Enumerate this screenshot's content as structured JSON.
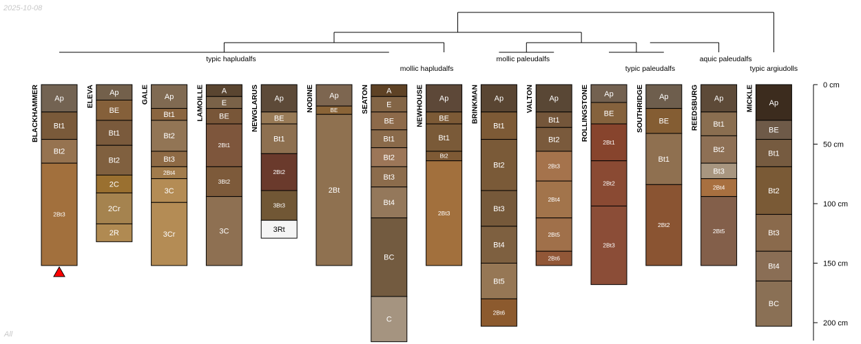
{
  "date_label": "2025-10-08",
  "subset_label": "All",
  "colors": {
    "line": "#000000",
    "missing_marker": "#ff0000",
    "light_text": "#ffffff",
    "dark_text": "#000000"
  },
  "depth_axis": {
    "unit": "cm",
    "ticks": [
      {
        "value": 0,
        "label": "0 cm"
      },
      {
        "value": 50,
        "label": "50 cm"
      },
      {
        "value": 100,
        "label": "100 cm"
      },
      {
        "value": 150,
        "label": "150 cm"
      },
      {
        "value": 200,
        "label": "200 cm"
      }
    ],
    "range": [
      0,
      215
    ]
  },
  "groups": [
    {
      "label": "typic hapludalfs",
      "profiles": [
        "BLACKHAMMER",
        "ELEVA",
        "GALE",
        "LAMOILLE",
        "NEWGLARUS",
        "NODINE",
        "SEATON"
      ]
    },
    {
      "label": "mollic hapludalfs",
      "profiles": [
        "NEWHOUSE"
      ]
    },
    {
      "label": "mollic paleudalfs",
      "profiles": [
        "BRINKMAN",
        "VALTON"
      ]
    },
    {
      "label": "typic paleudalfs",
      "profiles": [
        "ROLLINGSTONE",
        "SOUTHRIDGE"
      ]
    },
    {
      "label": "aquic paleudalfs",
      "profiles": [
        "REEDSBURG"
      ]
    },
    {
      "label": "typic argiudolls",
      "profiles": [
        "MICKLE"
      ]
    }
  ],
  "profiles": [
    {
      "name": "BLACKHAMMER",
      "truncated": true,
      "horizons": [
        {
          "name": "Ap",
          "top": 0,
          "bottom": 23,
          "color": "#736352"
        },
        {
          "name": "Bt1",
          "top": 23,
          "bottom": 46,
          "color": "#7a5a3a"
        },
        {
          "name": "Bt2",
          "top": 46,
          "bottom": 66,
          "color": "#967350"
        },
        {
          "name": "2Bt3",
          "top": 66,
          "bottom": 152,
          "color": "#a2703d"
        }
      ]
    },
    {
      "name": "ELEVA",
      "horizons": [
        {
          "name": "Ap",
          "top": 0,
          "bottom": 13,
          "color": "#73604b"
        },
        {
          "name": "BE",
          "top": 13,
          "bottom": 30,
          "color": "#85603a"
        },
        {
          "name": "Bt1",
          "top": 30,
          "bottom": 51,
          "color": "#7a5a3c"
        },
        {
          "name": "Bt2",
          "top": 51,
          "bottom": 76,
          "color": "#80603f"
        },
        {
          "name": "2C",
          "top": 76,
          "bottom": 91,
          "color": "#9a7030"
        },
        {
          "name": "2Cr",
          "top": 91,
          "bottom": 117,
          "color": "#a5834f"
        },
        {
          "name": "2R",
          "top": 117,
          "bottom": 132,
          "color": "#b08a52"
        }
      ]
    },
    {
      "name": "GALE",
      "horizons": [
        {
          "name": "Ap",
          "top": 0,
          "bottom": 20,
          "color": "#806a52"
        },
        {
          "name": "Bt1",
          "top": 20,
          "bottom": 30,
          "color": "#8a6540"
        },
        {
          "name": "Bt2",
          "top": 30,
          "bottom": 56,
          "color": "#927555"
        },
        {
          "name": "Bt3",
          "top": 56,
          "bottom": 69,
          "color": "#8e6a45"
        },
        {
          "name": "2Bt4",
          "top": 69,
          "bottom": 79,
          "color": "#a27c4c"
        },
        {
          "name": "3C",
          "top": 79,
          "bottom": 99,
          "color": "#b48c55"
        },
        {
          "name": "3Cr",
          "top": 99,
          "bottom": 152,
          "color": "#b48c55"
        }
      ]
    },
    {
      "name": "LAMOILLE",
      "horizons": [
        {
          "name": "A",
          "top": 0,
          "bottom": 10,
          "color": "#5a4530"
        },
        {
          "name": "E",
          "top": 10,
          "bottom": 20,
          "color": "#7a6248"
        },
        {
          "name": "BE",
          "top": 20,
          "bottom": 33,
          "color": "#785638"
        },
        {
          "name": "2Bt1",
          "top": 33,
          "bottom": 69,
          "color": "#7e563c"
        },
        {
          "name": "3Bt2",
          "top": 69,
          "bottom": 94,
          "color": "#7d5a3a"
        },
        {
          "name": "3C",
          "top": 94,
          "bottom": 152,
          "color": "#8e7052"
        }
      ]
    },
    {
      "name": "NEWGLARUS",
      "horizons": [
        {
          "name": "Ap",
          "top": 0,
          "bottom": 23,
          "color": "#5d4a38"
        },
        {
          "name": "BE",
          "top": 23,
          "bottom": 33,
          "color": "#987a56"
        },
        {
          "name": "Bt1",
          "top": 33,
          "bottom": 58,
          "color": "#8e7050"
        },
        {
          "name": "2Bt2",
          "top": 58,
          "bottom": 89,
          "color": "#6a3a2c"
        },
        {
          "name": "3Bt3",
          "top": 89,
          "bottom": 114,
          "color": "#715735"
        },
        {
          "name": "3Rt",
          "top": 114,
          "bottom": 129,
          "color": "#f5f5f5"
        }
      ]
    },
    {
      "name": "NODINE",
      "horizons": [
        {
          "name": "Ap",
          "top": 0,
          "bottom": 18,
          "color": "#7d6650"
        },
        {
          "name": "BE",
          "top": 18,
          "bottom": 25,
          "color": "#8a6437"
        },
        {
          "name": "2Bt",
          "top": 25,
          "bottom": 152,
          "color": "#8f7150"
        }
      ]
    },
    {
      "name": "SEATON",
      "horizons": [
        {
          "name": "A",
          "top": 0,
          "bottom": 10,
          "color": "#5e4225"
        },
        {
          "name": "E",
          "top": 10,
          "bottom": 23,
          "color": "#836546"
        },
        {
          "name": "BE",
          "top": 23,
          "bottom": 38,
          "color": "#8d6a4a"
        },
        {
          "name": "Bt1",
          "top": 38,
          "bottom": 53,
          "color": "#8a6a4a"
        },
        {
          "name": "Bt2",
          "top": 53,
          "bottom": 69,
          "color": "#9c7658"
        },
        {
          "name": "Bt3",
          "top": 69,
          "bottom": 86,
          "color": "#8c6c4c"
        },
        {
          "name": "Bt4",
          "top": 86,
          "bottom": 112,
          "color": "#94785b"
        },
        {
          "name": "BC",
          "top": 112,
          "bottom": 178,
          "color": "#735b40"
        },
        {
          "name": "C",
          "top": 178,
          "bottom": 216,
          "color": "#a59480"
        }
      ]
    },
    {
      "name": "NEWHOUSE",
      "horizons": [
        {
          "name": "Ap",
          "top": 0,
          "bottom": 23,
          "color": "#5d4838"
        },
        {
          "name": "BE",
          "top": 23,
          "bottom": 33,
          "color": "#7c5a36"
        },
        {
          "name": "Bt1",
          "top": 33,
          "bottom": 56,
          "color": "#7a5a38"
        },
        {
          "name": "Bt2",
          "top": 56,
          "bottom": 64,
          "color": "#7e5a35"
        },
        {
          "name": "2Bt3",
          "top": 64,
          "bottom": 152,
          "color": "#a2703d"
        }
      ]
    },
    {
      "name": "BRINKMAN",
      "horizons": [
        {
          "name": "Ap",
          "top": 0,
          "bottom": 23,
          "color": "#594532"
        },
        {
          "name": "Bt1",
          "top": 23,
          "bottom": 46,
          "color": "#7d5a36"
        },
        {
          "name": "Bt2",
          "top": 46,
          "bottom": 89,
          "color": "#7a5a38"
        },
        {
          "name": "Bt3",
          "top": 89,
          "bottom": 119,
          "color": "#76593a"
        },
        {
          "name": "Bt4",
          "top": 119,
          "bottom": 150,
          "color": "#7e6040"
        },
        {
          "name": "Bt5",
          "top": 150,
          "bottom": 180,
          "color": "#967755"
        },
        {
          "name": "2Bt6",
          "top": 180,
          "bottom": 203,
          "color": "#8c5a2e"
        }
      ]
    },
    {
      "name": "VALTON",
      "horizons": [
        {
          "name": "Ap",
          "top": 0,
          "bottom": 23,
          "color": "#594735"
        },
        {
          "name": "Bt1",
          "top": 23,
          "bottom": 36,
          "color": "#74563a"
        },
        {
          "name": "Bt2",
          "top": 36,
          "bottom": 56,
          "color": "#7a5a3c"
        },
        {
          "name": "2Bt3",
          "top": 56,
          "bottom": 81,
          "color": "#a5734c"
        },
        {
          "name": "2Bt4",
          "top": 81,
          "bottom": 112,
          "color": "#a2744b"
        },
        {
          "name": "2Bt5",
          "top": 112,
          "bottom": 140,
          "color": "#a0704a"
        },
        {
          "name": "2Bt6",
          "top": 140,
          "bottom": 152,
          "color": "#915737"
        }
      ]
    },
    {
      "name": "ROLLINGSTONE",
      "horizons": [
        {
          "name": "Ap",
          "top": 0,
          "bottom": 15,
          "color": "#736150"
        },
        {
          "name": "BE",
          "top": 15,
          "bottom": 33,
          "color": "#85623d"
        },
        {
          "name": "2Bt1",
          "top": 33,
          "bottom": 64,
          "color": "#87442d"
        },
        {
          "name": "2Bt2",
          "top": 64,
          "bottom": 102,
          "color": "#8a4a33"
        },
        {
          "name": "2Bt3",
          "top": 102,
          "bottom": 168,
          "color": "#8b4d37"
        }
      ]
    },
    {
      "name": "SOUTHRIDGE",
      "horizons": [
        {
          "name": "Ap",
          "top": 0,
          "bottom": 20,
          "color": "#6e5e4d"
        },
        {
          "name": "BE",
          "top": 20,
          "bottom": 41,
          "color": "#845d33"
        },
        {
          "name": "Bt1",
          "top": 41,
          "bottom": 84,
          "color": "#8f7050"
        },
        {
          "name": "2Bt2",
          "top": 84,
          "bottom": 152,
          "color": "#8a5432"
        }
      ]
    },
    {
      "name": "REEDSBURG",
      "horizons": [
        {
          "name": "Ap",
          "top": 0,
          "bottom": 23,
          "color": "#5d4a38"
        },
        {
          "name": "Bt1",
          "top": 23,
          "bottom": 43,
          "color": "#8a6e50"
        },
        {
          "name": "Bt2",
          "top": 43,
          "bottom": 66,
          "color": "#8e7055"
        },
        {
          "name": "Bt3",
          "top": 66,
          "bottom": 79,
          "color": "#a89680"
        },
        {
          "name": "2Bt4",
          "top": 79,
          "bottom": 94,
          "color": "#a87040"
        },
        {
          "name": "2Bt5",
          "top": 94,
          "bottom": 152,
          "color": "#835f4a"
        }
      ]
    },
    {
      "name": "MICKLE",
      "horizons": [
        {
          "name": "Ap",
          "top": 0,
          "bottom": 30,
          "color": "#3c2c1e"
        },
        {
          "name": "BE",
          "top": 30,
          "bottom": 46,
          "color": "#6e5a48"
        },
        {
          "name": "Bt1",
          "top": 46,
          "bottom": 69,
          "color": "#765b40"
        },
        {
          "name": "Bt2",
          "top": 69,
          "bottom": 109,
          "color": "#7a5a36"
        },
        {
          "name": "Bt3",
          "top": 109,
          "bottom": 140,
          "color": "#8a6a4c"
        },
        {
          "name": "Bt4",
          "top": 140,
          "bottom": 165,
          "color": "#8a6e55"
        },
        {
          "name": "BC",
          "top": 165,
          "bottom": 203,
          "color": "#8a7055"
        }
      ]
    }
  ]
}
